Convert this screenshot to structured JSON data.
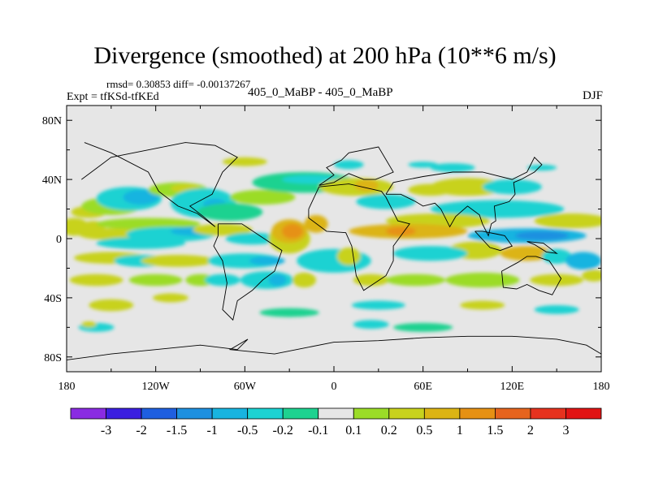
{
  "title": "Divergence (smoothed) at 200 hPa (10**6 m/s)",
  "stats": "rmsd= 0.30853 diff= -0.00137267",
  "expt": "Expt = tfKSd-tfKEd",
  "center_label": "405_0_MaBP - 405_0_MaBP",
  "season": "DJF",
  "chart_data": {
    "type": "heatmap",
    "title": "Divergence (smoothed) at 200 hPa (10**6 m/s)",
    "xlabel": "",
    "ylabel": "",
    "xlim": [
      -180,
      180
    ],
    "ylim": [
      -90,
      90
    ],
    "x_ticks": [
      {
        "value": -180,
        "label": "180"
      },
      {
        "value": -120,
        "label": "120W"
      },
      {
        "value": -60,
        "label": "60W"
      },
      {
        "value": 0,
        "label": "0"
      },
      {
        "value": 60,
        "label": "60E"
      },
      {
        "value": 120,
        "label": "120E"
      },
      {
        "value": 180,
        "label": "180"
      }
    ],
    "y_ticks": [
      {
        "value": 80,
        "label": "80N"
      },
      {
        "value": 40,
        "label": "40N"
      },
      {
        "value": 0,
        "label": "0"
      },
      {
        "value": -40,
        "label": "40S"
      },
      {
        "value": -80,
        "label": "80S"
      }
    ],
    "colorbar": {
      "colors": [
        "#8a2be2",
        "#3b1fe0",
        "#1f5fe0",
        "#1e90e0",
        "#18b4e0",
        "#1cd2d2",
        "#1ed290",
        "#e6e6e6",
        "#9bdc28",
        "#c8d21e",
        "#dcb414",
        "#e69114",
        "#e6641e",
        "#e6321e",
        "#e11414"
      ],
      "labels": [
        "-3",
        "-2",
        "-1.5",
        "-1",
        "-0.5",
        "-0.2",
        "-0.1",
        "0.1",
        "0.2",
        "0.5",
        "1",
        "1.5",
        "2",
        "3"
      ]
    },
    "blobs": [
      {
        "lon": -175,
        "lat": 8,
        "rlon": 10,
        "rlat": 6,
        "level": 9
      },
      {
        "lon": -162,
        "lat": 8,
        "rlon": 8,
        "rlat": 4,
        "level": 9
      },
      {
        "lon": -165,
        "lat": 18,
        "rlon": 12,
        "rlat": 4,
        "level": 9
      },
      {
        "lon": -150,
        "lat": 22,
        "rlon": 20,
        "rlat": 6,
        "level": 8
      },
      {
        "lon": -138,
        "lat": 27,
        "rlon": 22,
        "rlat": 8,
        "level": 5
      },
      {
        "lon": -130,
        "lat": 28,
        "rlon": 12,
        "rlat": 5,
        "level": 4
      },
      {
        "lon": -105,
        "lat": 33,
        "rlon": 20,
        "rlat": 5,
        "level": 8
      },
      {
        "lon": -100,
        "lat": 34,
        "rlon": 10,
        "rlat": 3,
        "level": 9
      },
      {
        "lon": -88,
        "lat": 24,
        "rlon": 22,
        "rlat": 10,
        "level": 5
      },
      {
        "lon": -80,
        "lat": 23,
        "rlon": 8,
        "rlat": 4,
        "level": 4
      },
      {
        "lon": -70,
        "lat": 18,
        "rlon": 22,
        "rlat": 6,
        "level": 6
      },
      {
        "lon": -48,
        "lat": 28,
        "rlon": 22,
        "rlat": 5,
        "level": 8
      },
      {
        "lon": -20,
        "lat": 38,
        "rlon": 35,
        "rlat": 7,
        "level": 6
      },
      {
        "lon": -15,
        "lat": 40,
        "rlon": 20,
        "rlat": 3,
        "level": 5
      },
      {
        "lon": -125,
        "lat": 10,
        "rlon": 35,
        "rlat": 4,
        "level": 8
      },
      {
        "lon": -150,
        "lat": 3,
        "rlon": 22,
        "rlat": 4,
        "level": 9
      },
      {
        "lon": -130,
        "lat": -3,
        "rlon": 30,
        "rlat": 4,
        "level": 5
      },
      {
        "lon": -110,
        "lat": 3,
        "rlon": 30,
        "rlat": 5,
        "level": 5
      },
      {
        "lon": -95,
        "lat": 5,
        "rlon": 15,
        "rlat": 3,
        "level": 4
      },
      {
        "lon": -75,
        "lat": 6,
        "rlon": 20,
        "rlat": 4,
        "level": 9
      },
      {
        "lon": -55,
        "lat": 0,
        "rlon": 18,
        "rlat": 4,
        "level": 5
      },
      {
        "lon": -150,
        "lat": -13,
        "rlon": 25,
        "rlat": 4,
        "level": 9
      },
      {
        "lon": -130,
        "lat": -15,
        "rlon": 18,
        "rlat": 4,
        "level": 5
      },
      {
        "lon": -105,
        "lat": -15,
        "rlon": 25,
        "rlat": 4,
        "level": 9
      },
      {
        "lon": -60,
        "lat": -15,
        "rlon": 25,
        "rlat": 5,
        "level": 5
      },
      {
        "lon": -45,
        "lat": -15,
        "rlon": 12,
        "rlat": 3,
        "level": 4
      },
      {
        "lon": -160,
        "lat": -28,
        "rlon": 18,
        "rlat": 4,
        "level": 9
      },
      {
        "lon": -120,
        "lat": -28,
        "rlon": 18,
        "rlat": 4,
        "level": 8
      },
      {
        "lon": -90,
        "lat": -28,
        "rlon": 10,
        "rlat": 4,
        "level": 8
      },
      {
        "lon": -45,
        "lat": -28,
        "rlon": 18,
        "rlat": 6,
        "level": 5
      },
      {
        "lon": -38,
        "lat": -28,
        "rlon": 6,
        "rlat": 4,
        "level": 4
      },
      {
        "lon": -75,
        "lat": -28,
        "rlon": 12,
        "rlat": 4,
        "level": 5
      },
      {
        "lon": -30,
        "lat": 0,
        "rlon": 14,
        "rlat": 10,
        "level": 9
      },
      {
        "lon": -30,
        "lat": 5,
        "rlon": 12,
        "rlat": 8,
        "level": 10
      },
      {
        "lon": -28,
        "lat": 5,
        "rlon": 7,
        "rlat": 5,
        "level": 11
      },
      {
        "lon": -12,
        "lat": 10,
        "rlon": 8,
        "rlat": 6,
        "level": 10
      },
      {
        "lon": -20,
        "lat": -28,
        "rlon": 8,
        "rlat": 5,
        "level": 9
      },
      {
        "lon": 0,
        "lat": -15,
        "rlon": 25,
        "rlat": 8,
        "level": 5
      },
      {
        "lon": 10,
        "lat": -12,
        "rlon": 8,
        "rlat": 6,
        "level": 9
      },
      {
        "lon": 25,
        "lat": -28,
        "rlon": 12,
        "rlat": 4,
        "level": 9
      },
      {
        "lon": 15,
        "lat": 35,
        "rlon": 25,
        "rlat": 6,
        "level": 9
      },
      {
        "lon": 22,
        "lat": 36,
        "rlon": 8,
        "rlat": 4,
        "level": 10
      },
      {
        "lon": 35,
        "lat": 25,
        "rlon": 20,
        "rlat": 5,
        "level": 5
      },
      {
        "lon": 65,
        "lat": 33,
        "rlon": 15,
        "rlat": 4,
        "level": 9
      },
      {
        "lon": 90,
        "lat": 35,
        "rlon": 25,
        "rlat": 6,
        "level": 9
      },
      {
        "lon": 120,
        "lat": 35,
        "rlon": 20,
        "rlat": 5,
        "level": 5
      },
      {
        "lon": 110,
        "lat": 20,
        "rlon": 45,
        "rlat": 6,
        "level": 5
      },
      {
        "lon": 70,
        "lat": 12,
        "rlon": 35,
        "rlat": 5,
        "level": 9
      },
      {
        "lon": 50,
        "lat": 5,
        "rlon": 40,
        "rlat": 5,
        "level": 10
      },
      {
        "lon": 45,
        "lat": 5,
        "rlon": 10,
        "rlat": 3,
        "level": 11
      },
      {
        "lon": 160,
        "lat": 12,
        "rlon": 25,
        "rlat": 5,
        "level": 9
      },
      {
        "lon": 130,
        "lat": 2,
        "rlon": 40,
        "rlat": 5,
        "level": 4
      },
      {
        "lon": 140,
        "lat": 2,
        "rlon": 18,
        "rlat": 3,
        "level": 3
      },
      {
        "lon": 95,
        "lat": -8,
        "rlon": 18,
        "rlat": 6,
        "level": 9
      },
      {
        "lon": 65,
        "lat": -10,
        "rlon": 25,
        "rlat": 5,
        "level": 5
      },
      {
        "lon": 130,
        "lat": -10,
        "rlon": 18,
        "rlat": 5,
        "level": 10
      },
      {
        "lon": 150,
        "lat": -12,
        "rlon": 10,
        "rlat": 5,
        "level": 5
      },
      {
        "lon": 168,
        "lat": -15,
        "rlon": 12,
        "rlat": 6,
        "level": 4
      },
      {
        "lon": 100,
        "lat": -28,
        "rlon": 25,
        "rlat": 5,
        "level": 8
      },
      {
        "lon": 55,
        "lat": -28,
        "rlon": 20,
        "rlat": 4,
        "level": 8
      },
      {
        "lon": 150,
        "lat": -28,
        "rlon": 18,
        "rlat": 4,
        "level": 9
      },
      {
        "lon": 175,
        "lat": -25,
        "rlon": 8,
        "rlat": 4,
        "level": 9
      },
      {
        "lon": -150,
        "lat": -45,
        "rlon": 15,
        "rlat": 4,
        "level": 9
      },
      {
        "lon": -110,
        "lat": -40,
        "rlon": 12,
        "rlat": 3,
        "level": 9
      },
      {
        "lon": -30,
        "lat": -50,
        "rlon": 20,
        "rlat": 3,
        "level": 6
      },
      {
        "lon": 30,
        "lat": -45,
        "rlon": 18,
        "rlat": 3,
        "level": 5
      },
      {
        "lon": 100,
        "lat": -45,
        "rlon": 15,
        "rlat": 3,
        "level": 9
      },
      {
        "lon": 150,
        "lat": -48,
        "rlon": 15,
        "rlat": 3,
        "level": 5
      },
      {
        "lon": -160,
        "lat": -60,
        "rlon": 12,
        "rlat": 3,
        "level": 5
      },
      {
        "lon": -165,
        "lat": -58,
        "rlon": 5,
        "rlat": 2,
        "level": 9
      },
      {
        "lon": 60,
        "lat": -60,
        "rlon": 20,
        "rlat": 3,
        "level": 6
      },
      {
        "lon": 25,
        "lat": -58,
        "rlon": 12,
        "rlat": 3,
        "level": 5
      },
      {
        "lon": -60,
        "lat": 52,
        "rlon": 15,
        "rlat": 3,
        "level": 9
      },
      {
        "lon": 10,
        "lat": 50,
        "rlon": 10,
        "rlat": 3,
        "level": 5
      },
      {
        "lon": 80,
        "lat": 48,
        "rlon": 15,
        "rlat": 3,
        "level": 5
      },
      {
        "lon": 60,
        "lat": 50,
        "rlon": 10,
        "rlat": 2,
        "level": 5
      },
      {
        "lon": 140,
        "lat": 48,
        "rlon": 10,
        "rlat": 2,
        "level": 5
      }
    ],
    "coastlines": [
      [
        [
          -170,
          40
        ],
        [
          -150,
          55
        ],
        [
          -125,
          60
        ],
        [
          -100,
          65
        ],
        [
          -80,
          63
        ],
        [
          -65,
          55
        ],
        [
          -75,
          45
        ],
        [
          -82,
          30
        ],
        [
          -97,
          22
        ],
        [
          -88,
          15
        ],
        [
          -80,
          8
        ],
        [
          -92,
          17
        ],
        [
          -105,
          22
        ],
        [
          -118,
          32
        ],
        [
          -125,
          45
        ],
        [
          -150,
          58
        ],
        [
          -168,
          65
        ]
      ],
      [
        [
          -78,
          10
        ],
        [
          -62,
          10
        ],
        [
          -50,
          2
        ],
        [
          -35,
          -8
        ],
        [
          -40,
          -22
        ],
        [
          -48,
          -28
        ],
        [
          -55,
          -35
        ],
        [
          -65,
          -42
        ],
        [
          -68,
          -55
        ],
        [
          -75,
          -48
        ],
        [
          -72,
          -30
        ],
        [
          -75,
          -15
        ],
        [
          -81,
          -5
        ],
        [
          -78,
          2
        ],
        [
          -78,
          10
        ]
      ],
      [
        [
          -17,
          20
        ],
        [
          -10,
          35
        ],
        [
          10,
          37
        ],
        [
          32,
          32
        ],
        [
          35,
          28
        ],
        [
          43,
          12
        ],
        [
          51,
          10
        ],
        [
          40,
          -5
        ],
        [
          40,
          -15
        ],
        [
          35,
          -25
        ],
        [
          20,
          -35
        ],
        [
          15,
          -25
        ],
        [
          12,
          -5
        ],
        [
          8,
          4
        ],
        [
          -5,
          5
        ],
        [
          -17,
          14
        ],
        [
          -17,
          20
        ]
      ],
      [
        [
          -10,
          36
        ],
        [
          0,
          43
        ],
        [
          -5,
          48
        ],
        [
          5,
          53
        ],
        [
          10,
          58
        ],
        [
          30,
          62
        ],
        [
          40,
          45
        ],
        [
          28,
          40
        ],
        [
          20,
          40
        ],
        [
          10,
          44
        ],
        [
          0,
          38
        ],
        [
          -10,
          36
        ]
      ],
      [
        [
          35,
          30
        ],
        [
          45,
          30
        ],
        [
          55,
          25
        ],
        [
          60,
          22
        ],
        [
          68,
          24
        ],
        [
          72,
          20
        ],
        [
          78,
          8
        ],
        [
          82,
          15
        ],
        [
          90,
          22
        ],
        [
          98,
          16
        ],
        [
          100,
          10
        ],
        [
          104,
          2
        ],
        [
          106,
          10
        ],
        [
          109,
          12
        ],
        [
          108,
          22
        ],
        [
          118,
          25
        ],
        [
          122,
          30
        ],
        [
          121,
          38
        ],
        [
          126,
          40
        ],
        [
          135,
          45
        ],
        [
          140,
          50
        ],
        [
          135,
          55
        ],
        [
          130,
          45
        ],
        [
          120,
          40
        ],
        [
          100,
          45
        ],
        [
          80,
          45
        ],
        [
          60,
          42
        ],
        [
          50,
          40
        ],
        [
          40,
          38
        ],
        [
          35,
          30
        ]
      ],
      [
        [
          95,
          5
        ],
        [
          105,
          -6
        ],
        [
          112,
          -8
        ],
        [
          120,
          -5
        ],
        [
          115,
          2
        ],
        [
          110,
          3
        ],
        [
          100,
          5
        ],
        [
          95,
          5
        ]
      ],
      [
        [
          113,
          -22
        ],
        [
          114,
          -33
        ],
        [
          123,
          -34
        ],
        [
          130,
          -31
        ],
        [
          138,
          -35
        ],
        [
          147,
          -38
        ],
        [
          153,
          -27
        ],
        [
          145,
          -15
        ],
        [
          136,
          -12
        ],
        [
          130,
          -12
        ],
        [
          124,
          -16
        ],
        [
          113,
          -22
        ]
      ],
      [
        [
          130,
          -2
        ],
        [
          141,
          -3
        ],
        [
          150,
          -10
        ],
        [
          143,
          -9
        ],
        [
          135,
          -4
        ],
        [
          130,
          -2
        ]
      ],
      [
        [
          -180,
          -82
        ],
        [
          -150,
          -78
        ],
        [
          -120,
          -75
        ],
        [
          -90,
          -72
        ],
        [
          -65,
          -75
        ],
        [
          -58,
          -68
        ],
        [
          -70,
          -75
        ],
        [
          -40,
          -78
        ],
        [
          -20,
          -74
        ],
        [
          0,
          -70
        ],
        [
          30,
          -69
        ],
        [
          60,
          -67
        ],
        [
          90,
          -66
        ],
        [
          120,
          -66
        ],
        [
          150,
          -68
        ],
        [
          170,
          -72
        ],
        [
          180,
          -78
        ]
      ]
    ]
  }
}
